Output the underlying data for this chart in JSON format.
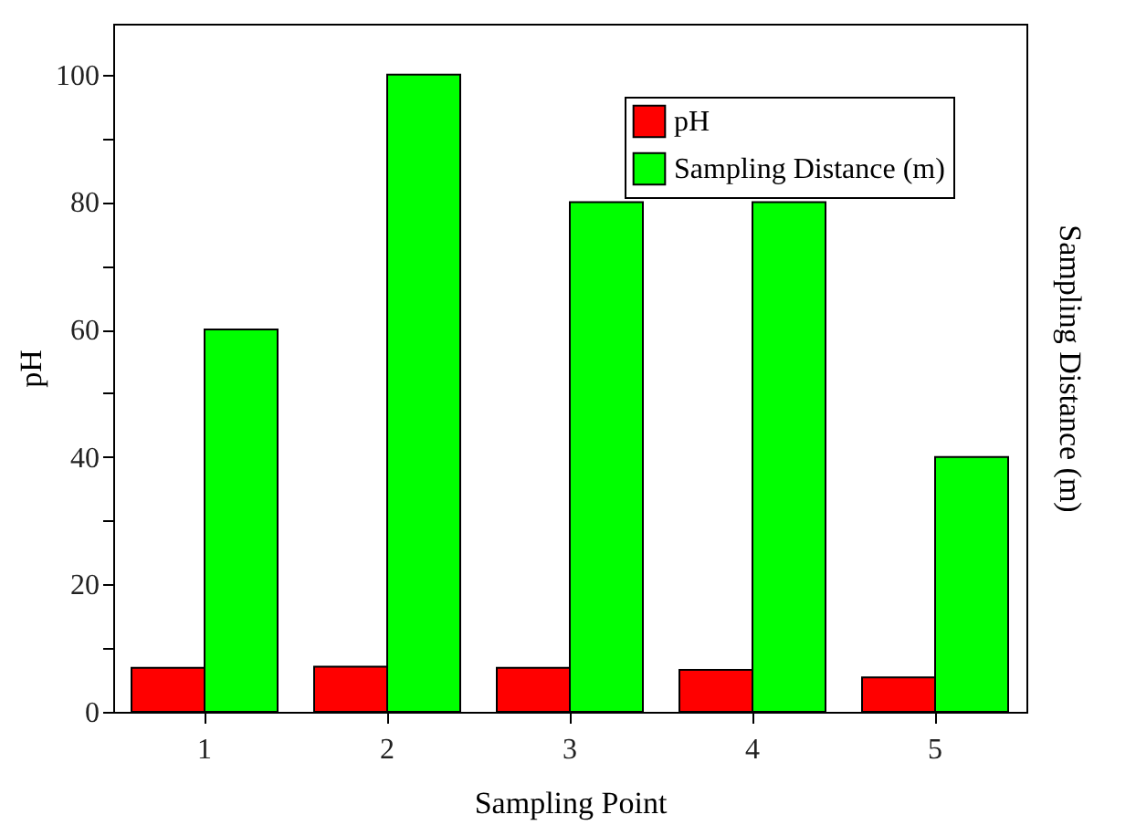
{
  "chart_data": {
    "type": "bar",
    "xlabel": "Sampling Point",
    "ylabel": "pH",
    "y2label": "Sampling Distance (m)",
    "categories": [
      "1",
      "2",
      "3",
      "4",
      "5"
    ],
    "series": [
      {
        "name": "pH",
        "color": "#ff0000",
        "values": [
          6.9,
          7.1,
          6.9,
          6.6,
          5.4
        ]
      },
      {
        "name": "Sampling Distance (m)",
        "color": "#00ff00",
        "values": [
          60,
          100,
          80,
          80,
          40
        ]
      }
    ],
    "ylim": [
      0,
      108
    ],
    "yticks": [
      0,
      {
        "value": 10,
        "label": null
      },
      20,
      {
        "value": 30,
        "label": null
      },
      40,
      {
        "value": 50,
        "label": null
      },
      60,
      {
        "value": 70,
        "label": null
      },
      80,
      {
        "value": 90,
        "label": null
      },
      100
    ],
    "grid": false,
    "legend": "top right"
  }
}
